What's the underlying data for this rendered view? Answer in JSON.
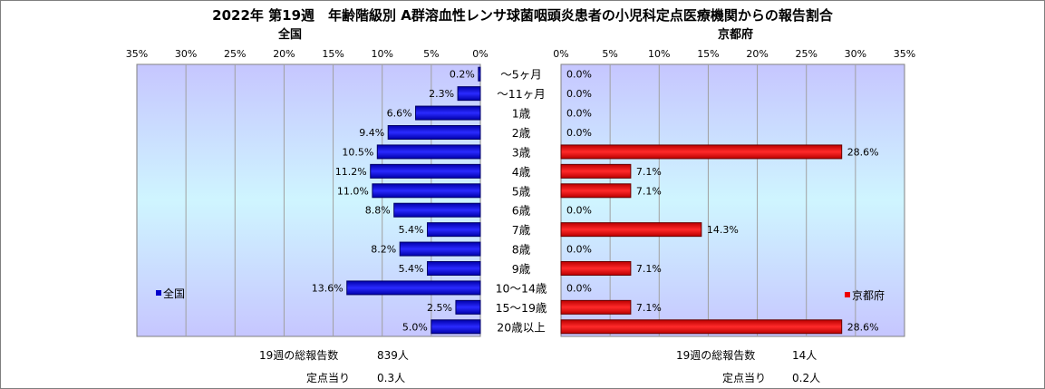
{
  "title": "2022年 第19週　年齢階級別 A群溶血性レンサ球菌咽頭炎患者の小児科定点医療機関からの報告割合",
  "chart_data": {
    "type": "bar",
    "categories": [
      "～5ヶ月",
      "～11ヶ月",
      "1歳",
      "2歳",
      "3歳",
      "4歳",
      "5歳",
      "6歳",
      "7歳",
      "8歳",
      "9歳",
      "10～14歳",
      "15～19歳",
      "20歳以上"
    ],
    "xlim": [
      0,
      35
    ],
    "xticks": [
      "0%",
      "5%",
      "10%",
      "15%",
      "20%",
      "25%",
      "30%",
      "35%"
    ],
    "panels": [
      {
        "name": "全国",
        "legend": "全国",
        "color": "#0000cc",
        "values": [
          0.2,
          2.3,
          6.6,
          9.4,
          10.5,
          11.2,
          11.0,
          8.8,
          5.4,
          8.2,
          5.4,
          13.6,
          2.5,
          5.0
        ],
        "labels": [
          "0.2%",
          "2.3%",
          "6.6%",
          "9.4%",
          "10.5%",
          "11.2%",
          "11.0%",
          "8.8%",
          "5.4%",
          "8.2%",
          "5.4%",
          "13.6%",
          "2.5%",
          "5.0%"
        ],
        "total_label": "19週の総報告数",
        "total_value": "839人",
        "per_label": "定点当り",
        "per_value": "0.3人"
      },
      {
        "name": "京都府",
        "legend": "京都府",
        "color": "#ee0000",
        "values": [
          0.0,
          0.0,
          0.0,
          0.0,
          28.6,
          7.1,
          7.1,
          0.0,
          14.3,
          0.0,
          7.1,
          0.0,
          7.1,
          28.6
        ],
        "labels": [
          "0.0%",
          "0.0%",
          "0.0%",
          "0.0%",
          "28.6%",
          "7.1%",
          "7.1%",
          "0.0%",
          "14.3%",
          "0.0%",
          "7.1%",
          "0.0%",
          "7.1%",
          "28.6%"
        ],
        "total_label": "19週の総報告数",
        "total_value": "14人",
        "per_label": "定点当り",
        "per_value": "0.2人"
      }
    ],
    "grid": true,
    "legend_position": "bottom-outer"
  }
}
